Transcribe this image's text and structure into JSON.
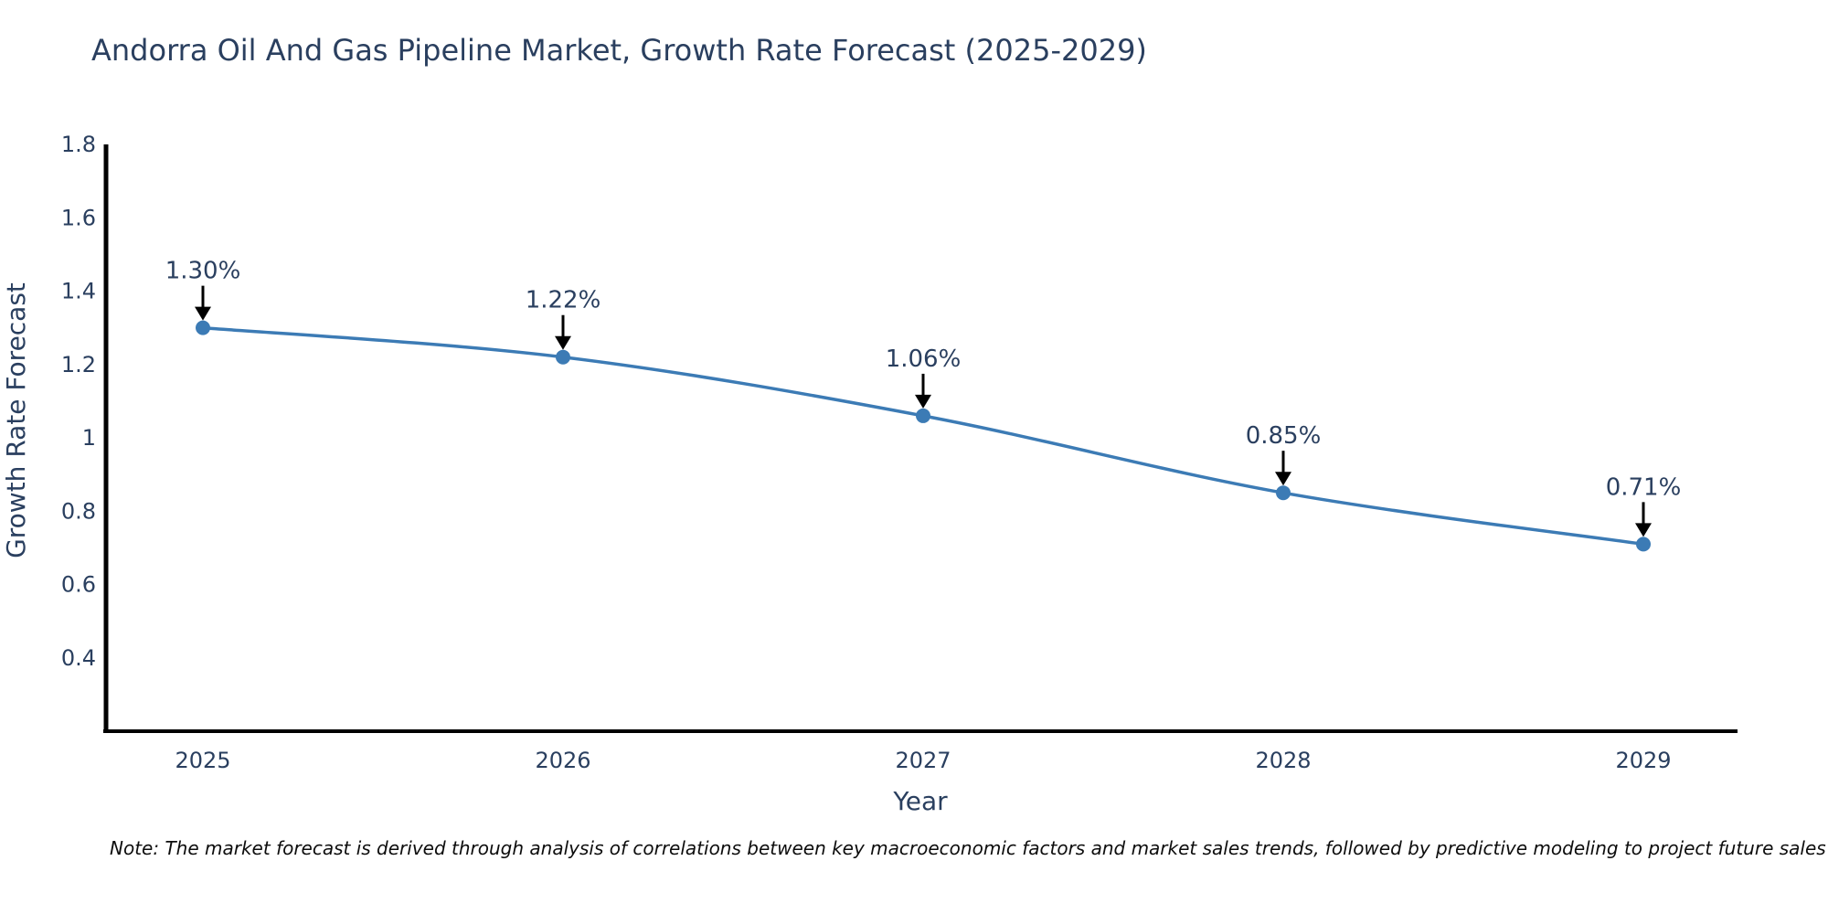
{
  "title": "Andorra Oil And Gas Pipeline Market, Growth Rate Forecast (2025-2029)",
  "note": "Note: The market forecast is derived through analysis of correlations between key macroeconomic factors and market sales trends, followed by predictive modeling to project future sales",
  "colors": {
    "title_text": "#2a3f5f",
    "axis_text": "#2a3f5f",
    "axis_line": "#000000",
    "series_line": "#3c7bb5",
    "marker_fill": "#3c7bb5",
    "annotation_text": "#2a3f5f",
    "annotation_arrow": "#000000",
    "background": "#ffffff"
  },
  "chart_data": {
    "type": "line",
    "title": "Andorra Oil And Gas Pipeline Market, Growth Rate Forecast (2025-2029)",
    "xlabel": "Year",
    "ylabel": "Growth Rate Forecast",
    "categories": [
      "2025",
      "2026",
      "2027",
      "2028",
      "2029"
    ],
    "x": [
      2025,
      2026,
      2027,
      2028,
      2029
    ],
    "values": [
      1.3,
      1.22,
      1.06,
      0.85,
      0.71
    ],
    "point_labels": [
      "1.30%",
      "1.22%",
      "1.06%",
      "0.85%",
      "0.71%"
    ],
    "ylim": [
      0.2,
      1.8
    ],
    "yticks": [
      0.4,
      0.6,
      0.8,
      1,
      1.2,
      1.4,
      1.6,
      1.8
    ],
    "ytick_labels": [
      "0.4",
      "0.6",
      "0.8",
      "1",
      "1.2",
      "1.4",
      "1.6",
      "1.8"
    ],
    "grid": false,
    "legend": "none",
    "line_shape": "spline",
    "markers": "circle",
    "annotation_arrows": true
  }
}
